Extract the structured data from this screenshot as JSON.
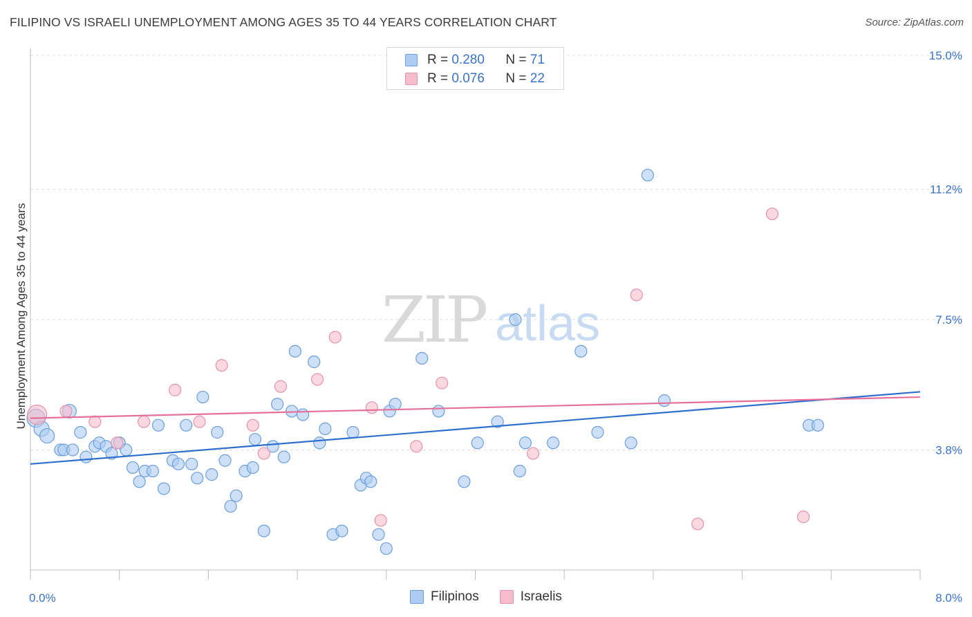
{
  "title": "FILIPINO VS ISRAELI UNEMPLOYMENT AMONG AGES 35 TO 44 YEARS CORRELATION CHART",
  "source": "Source: ZipAtlas.com",
  "watermark": {
    "zip": "ZIP",
    "atlas": "atlas"
  },
  "legend_top": [
    {
      "r_label": "R = ",
      "r_value": "0.280",
      "n_label": "N = ",
      "n_value": "71"
    },
    {
      "r_label": "R = ",
      "r_value": "0.076",
      "n_label": "N = ",
      "n_value": "22"
    }
  ],
  "legend_bottom": [
    "Filipinos",
    "Israelis"
  ],
  "colors": {
    "filipino_fill": "#aeccf2",
    "filipino_stroke": "#6a9edc",
    "filipino_line": "#2f6fcc",
    "israeli_fill": "#f7bccd",
    "israeli_stroke": "#e592ac",
    "israeli_line": "#e5709a",
    "tick_label": "#3a72c8",
    "grid": "#dddddd"
  },
  "chart_data": {
    "type": "scatter",
    "title": "FILIPINO VS ISRAELI UNEMPLOYMENT AMONG AGES 35 TO 44 YEARS CORRELATION CHART",
    "xlabel": "",
    "ylabel": "Unemployment Among Ages 35 to 44 years",
    "xlim": [
      0,
      8
    ],
    "ylim": [
      0,
      15.5
    ],
    "x_tick_labels": [
      {
        "value": 0,
        "label": "0.0%"
      },
      {
        "value": 8,
        "label": "8.0%"
      }
    ],
    "y_tick_labels": [
      {
        "value": 3.8,
        "label": "3.8%"
      },
      {
        "value": 7.5,
        "label": "7.5%"
      },
      {
        "value": 11.2,
        "label": "11.2%"
      },
      {
        "value": 15.0,
        "label": "15.0%"
      }
    ],
    "grid": true,
    "legend_position": "top-center",
    "series": [
      {
        "name": "Filipinos",
        "r": 0.28,
        "n": 71,
        "trend": {
          "x": [
            0,
            8
          ],
          "y": [
            3.4,
            5.45
          ]
        },
        "points": [
          [
            0.05,
            4.7
          ],
          [
            0.1,
            4.4
          ],
          [
            0.15,
            4.2
          ],
          [
            0.35,
            4.9
          ],
          [
            0.27,
            3.8
          ],
          [
            0.45,
            4.3
          ],
          [
            0.3,
            3.8
          ],
          [
            0.38,
            3.8
          ],
          [
            0.5,
            3.6
          ],
          [
            0.58,
            3.9
          ],
          [
            0.62,
            4.0
          ],
          [
            0.68,
            3.9
          ],
          [
            0.73,
            3.7
          ],
          [
            0.8,
            4.0
          ],
          [
            0.86,
            3.8
          ],
          [
            0.92,
            3.3
          ],
          [
            0.98,
            2.9
          ],
          [
            1.03,
            3.2
          ],
          [
            1.1,
            3.2
          ],
          [
            1.15,
            4.5
          ],
          [
            1.2,
            2.7
          ],
          [
            1.28,
            3.5
          ],
          [
            1.33,
            3.4
          ],
          [
            1.4,
            4.5
          ],
          [
            1.45,
            3.4
          ],
          [
            1.5,
            3.0
          ],
          [
            1.55,
            5.3
          ],
          [
            1.63,
            3.1
          ],
          [
            1.68,
            4.3
          ],
          [
            1.75,
            3.5
          ],
          [
            1.8,
            2.2
          ],
          [
            1.85,
            2.5
          ],
          [
            1.93,
            3.2
          ],
          [
            2.0,
            3.3
          ],
          [
            2.02,
            4.1
          ],
          [
            2.1,
            1.5
          ],
          [
            2.18,
            3.9
          ],
          [
            2.22,
            5.1
          ],
          [
            2.28,
            3.6
          ],
          [
            2.35,
            4.9
          ],
          [
            2.38,
            6.6
          ],
          [
            2.45,
            4.8
          ],
          [
            2.55,
            6.3
          ],
          [
            2.6,
            4.0
          ],
          [
            2.65,
            4.4
          ],
          [
            2.72,
            1.4
          ],
          [
            2.8,
            1.5
          ],
          [
            2.9,
            4.3
          ],
          [
            2.97,
            2.8
          ],
          [
            3.02,
            3.0
          ],
          [
            3.06,
            2.9
          ],
          [
            3.13,
            1.4
          ],
          [
            3.2,
            1.0
          ],
          [
            3.23,
            4.9
          ],
          [
            3.28,
            5.1
          ],
          [
            3.52,
            6.4
          ],
          [
            3.67,
            4.9
          ],
          [
            3.9,
            2.9
          ],
          [
            4.02,
            4.0
          ],
          [
            4.2,
            4.6
          ],
          [
            4.36,
            7.5
          ],
          [
            4.4,
            3.2
          ],
          [
            4.45,
            4.0
          ],
          [
            4.7,
            4.0
          ],
          [
            4.95,
            6.6
          ],
          [
            5.1,
            4.3
          ],
          [
            5.4,
            4.0
          ],
          [
            5.55,
            11.6
          ],
          [
            5.7,
            5.2
          ],
          [
            7.0,
            4.5
          ],
          [
            7.08,
            4.5
          ]
        ],
        "sizes": {
          "0.05": 13,
          "0.1": 12,
          "0.15": 11,
          "0.35": 10
        }
      },
      {
        "name": "Israelis",
        "r": 0.076,
        "n": 22,
        "trend": {
          "x": [
            0,
            8
          ],
          "y": [
            4.7,
            5.3
          ]
        },
        "points": [
          [
            0.06,
            4.8
          ],
          [
            0.32,
            4.9
          ],
          [
            0.58,
            4.6
          ],
          [
            0.78,
            4.0
          ],
          [
            1.02,
            4.6
          ],
          [
            1.3,
            5.5
          ],
          [
            1.52,
            4.6
          ],
          [
            1.72,
            6.2
          ],
          [
            2.0,
            4.5
          ],
          [
            2.1,
            3.7
          ],
          [
            2.25,
            5.6
          ],
          [
            2.58,
            5.8
          ],
          [
            2.74,
            7.0
          ],
          [
            3.07,
            5.0
          ],
          [
            3.15,
            1.8
          ],
          [
            3.47,
            3.9
          ],
          [
            3.7,
            5.7
          ],
          [
            4.52,
            3.7
          ],
          [
            5.45,
            8.2
          ],
          [
            6.0,
            1.7
          ],
          [
            6.67,
            10.5
          ],
          [
            6.95,
            1.9
          ]
        ]
      }
    ]
  }
}
